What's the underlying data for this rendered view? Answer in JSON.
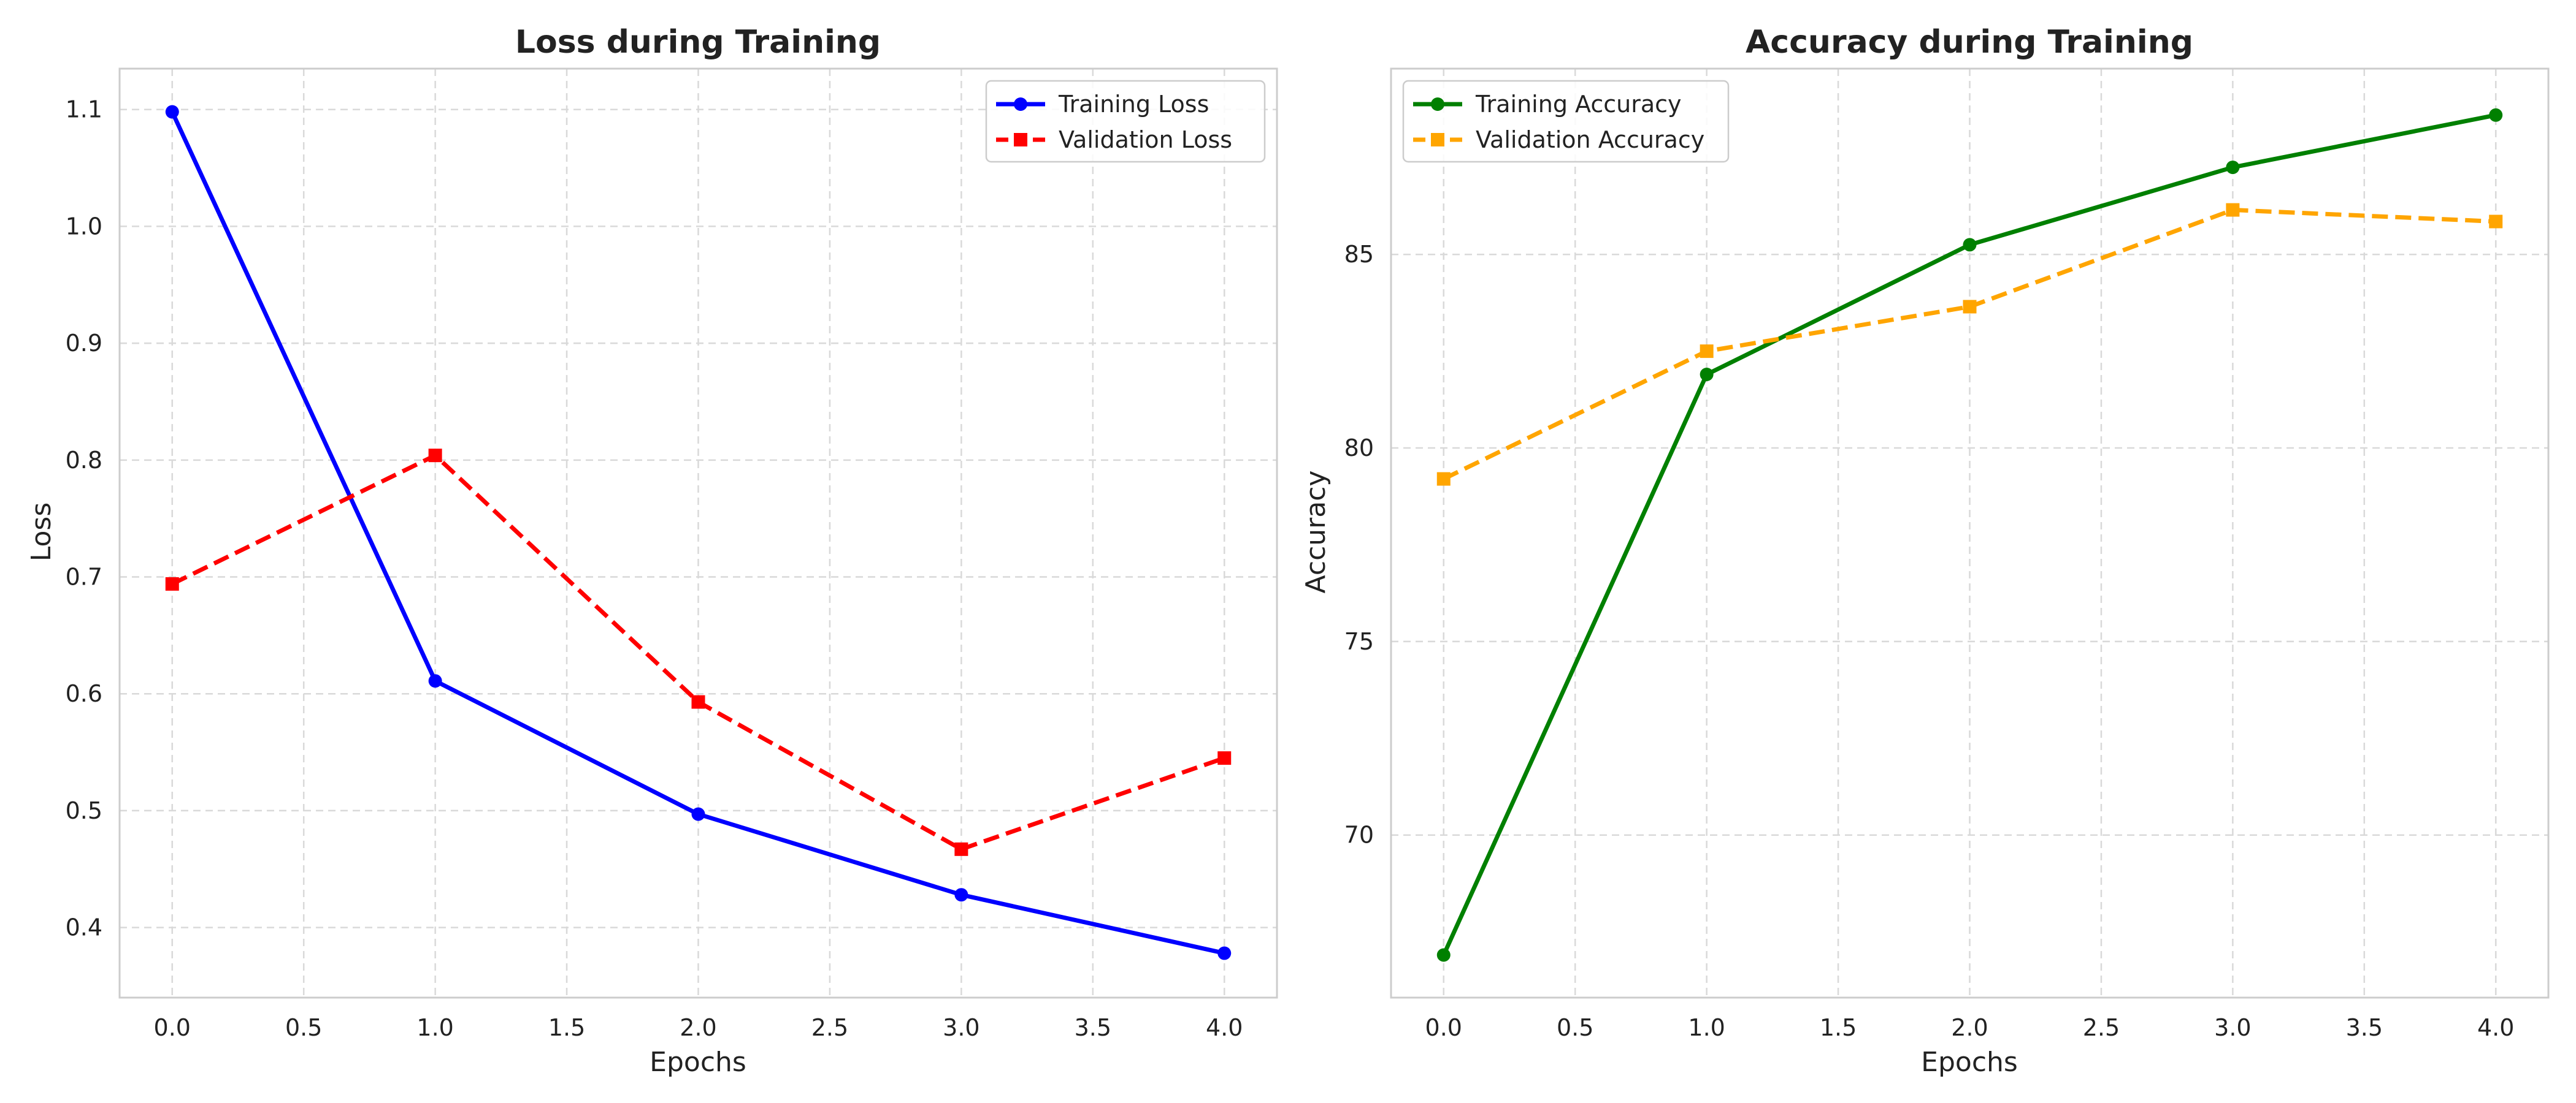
{
  "chart_data": [
    {
      "type": "line",
      "title": "Loss during Training",
      "xlabel": "Epochs",
      "ylabel": "Loss",
      "x": [
        0,
        1,
        2,
        3,
        4
      ],
      "xlim": [
        -0.2,
        4.2
      ],
      "ylim": [
        0.34,
        1.135
      ],
      "xticks": [
        0.0,
        0.5,
        1.0,
        1.5,
        2.0,
        2.5,
        3.0,
        3.5,
        4.0
      ],
      "xtick_labels": [
        "0.0",
        "0.5",
        "1.0",
        "1.5",
        "2.0",
        "2.5",
        "3.0",
        "3.5",
        "4.0"
      ],
      "yticks": [
        0.4,
        0.5,
        0.6,
        0.7,
        0.8,
        0.9,
        1.0,
        1.1
      ],
      "ytick_labels": [
        "0.4",
        "0.5",
        "0.6",
        "0.7",
        "0.8",
        "0.9",
        "1.0",
        "1.1"
      ],
      "grid": true,
      "legend_position": "top-right",
      "series": [
        {
          "name": "Training Loss",
          "values": [
            1.098,
            0.611,
            0.497,
            0.428,
            0.378
          ],
          "color": "#0000ff",
          "style": "solid",
          "marker": "circle"
        },
        {
          "name": "Validation Loss",
          "values": [
            0.694,
            0.804,
            0.593,
            0.467,
            0.545
          ],
          "color": "#ff0000",
          "style": "dashed",
          "marker": "square"
        }
      ]
    },
    {
      "type": "line",
      "title": "Accuracy during Training",
      "xlabel": "Epochs",
      "ylabel": "Accuracy",
      "x": [
        0,
        1,
        2,
        3,
        4
      ],
      "xlim": [
        -0.2,
        4.2
      ],
      "ylim": [
        65.8,
        89.8
      ],
      "xticks": [
        0.0,
        0.5,
        1.0,
        1.5,
        2.0,
        2.5,
        3.0,
        3.5,
        4.0
      ],
      "xtick_labels": [
        "0.0",
        "0.5",
        "1.0",
        "1.5",
        "2.0",
        "2.5",
        "3.0",
        "3.5",
        "4.0"
      ],
      "yticks": [
        70,
        75,
        80,
        85
      ],
      "ytick_labels": [
        "70",
        "75",
        "80",
        "85"
      ],
      "grid": true,
      "legend_position": "top-left",
      "series": [
        {
          "name": "Training Accuracy",
          "values": [
            66.9,
            81.9,
            85.25,
            87.25,
            88.6
          ],
          "color": "#008000",
          "style": "solid",
          "marker": "circle"
        },
        {
          "name": "Validation Accuracy",
          "values": [
            79.2,
            82.5,
            83.65,
            86.15,
            85.85
          ],
          "color": "#ffa500",
          "style": "dashed",
          "marker": "square"
        }
      ]
    }
  ]
}
